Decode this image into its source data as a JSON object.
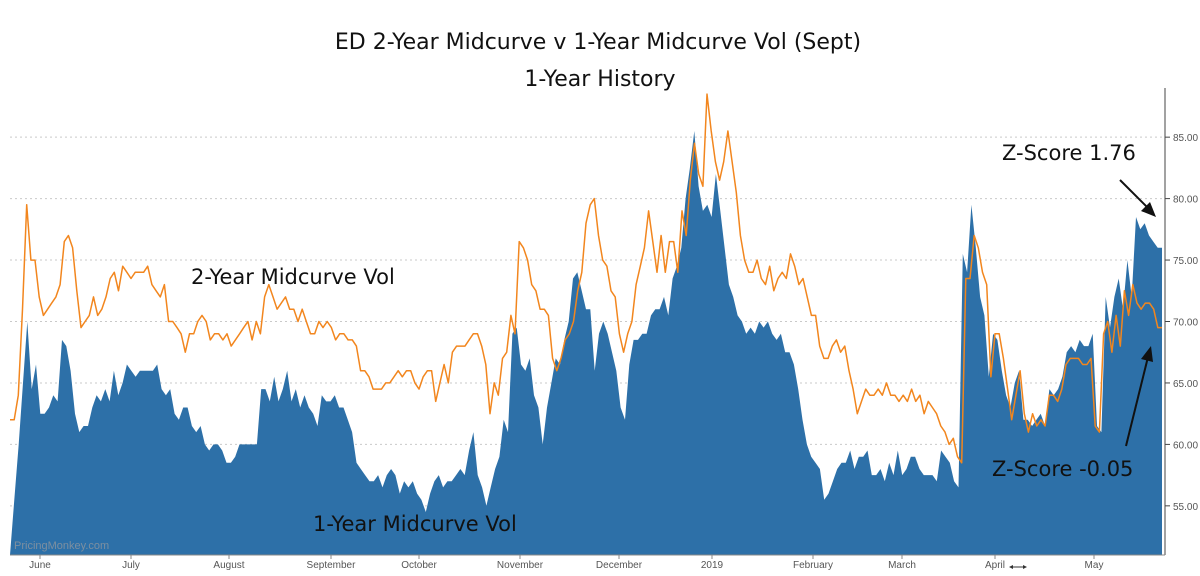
{
  "chart_data": {
    "type": "area",
    "title": "ED 2-Year Midcurve v 1-Year Midcurve Vol (Sept)",
    "subtitle": "1-Year History",
    "ylim": [
      51,
      89
    ],
    "y_ticks": [
      "55.00",
      "60.00",
      "65.00",
      "70.00",
      "75.00",
      "80.00",
      "85.00"
    ],
    "x_ticks": [
      "June",
      "July",
      "August",
      "September",
      "October",
      "November",
      "December",
      "2019",
      "February",
      "March",
      "April",
      "May"
    ],
    "grid": true,
    "series": [
      {
        "name": "2-Year Midcurve Vol",
        "kind": "line",
        "color": "#f2861e",
        "values": [
          62,
          62,
          64,
          71,
          79.5,
          75,
          75,
          72,
          70.5,
          71,
          71.5,
          72,
          73,
          76.5,
          77,
          76,
          72.5,
          69.5,
          70,
          70.5,
          72,
          70.5,
          71,
          72,
          73.5,
          74,
          72.5,
          74.5,
          74,
          73.5,
          74,
          74,
          74,
          74.5,
          73,
          72.5,
          72,
          73,
          70,
          70,
          69.5,
          69,
          67.5,
          69,
          69,
          70,
          70.5,
          70,
          68.5,
          69,
          69,
          68.5,
          69,
          68,
          68.5,
          69,
          69.5,
          70,
          68.5,
          70,
          69,
          72,
          73,
          72,
          71,
          71.5,
          72,
          71,
          71,
          70,
          71,
          70,
          69,
          69,
          70,
          69.5,
          70,
          69.5,
          68.5,
          69,
          69,
          68.5,
          68.5,
          68,
          66,
          66,
          65.5,
          64.5,
          64.5,
          64.5,
          65,
          65,
          65.5,
          66,
          65.5,
          66,
          66,
          65,
          64.5,
          65.5,
          66,
          66,
          63.5,
          65,
          66.5,
          65,
          67.5,
          68,
          68,
          68,
          68.5,
          69,
          69,
          68,
          66.5,
          62.5,
          65,
          64,
          67,
          67.5,
          70.5,
          69,
          76.5,
          76,
          75,
          73,
          72.5,
          71,
          71,
          70.5,
          67,
          66,
          67,
          68.5,
          69,
          70,
          72.5,
          74,
          78,
          79.5,
          80,
          77,
          75,
          74.5,
          72.5,
          72,
          69,
          67.5,
          69,
          70,
          73,
          74.5,
          76,
          79,
          76.5,
          74,
          77,
          74,
          76.5,
          76.5,
          74,
          79,
          77,
          81.5,
          84.5,
          82,
          81,
          88.5,
          85.5,
          83,
          81.5,
          83,
          85.5,
          83,
          80.5,
          77,
          75,
          74,
          74,
          75,
          73.5,
          73,
          74.5,
          72.5,
          73.5,
          74,
          73.5,
          75.5,
          74.5,
          73,
          73.5,
          72,
          70.5,
          70.5,
          68,
          67,
          67,
          68,
          68.5,
          67.5,
          68,
          66,
          64.5,
          62.5,
          63.5,
          64.5,
          64,
          64,
          64.5,
          64,
          65,
          64,
          64,
          63.5,
          64,
          63.5,
          64.5,
          63.5,
          64,
          62.5,
          63.5,
          63,
          62.5,
          61.5,
          61,
          60,
          60.5,
          59,
          58.5,
          73.5,
          73.5,
          77,
          76,
          74,
          73,
          65.5,
          69,
          69,
          67,
          64.5,
          62,
          64,
          66,
          62.5,
          61,
          62.5,
          61.5,
          62,
          61.5,
          64,
          64,
          63.5,
          64.5,
          66.5,
          67,
          67,
          67,
          66.5,
          66.5,
          67,
          61.5,
          61,
          69,
          70,
          67.5,
          70.5,
          68,
          72.5,
          70.5,
          73,
          71.5,
          71,
          71.5,
          71.5,
          71,
          69.5,
          69.5
        ]
      },
      {
        "name": "1-Year Midcurve Vol",
        "kind": "area",
        "color": "#2d70a8",
        "values": [
          51,
          55.5,
          60,
          65,
          70,
          64.5,
          66.5,
          62.5,
          62.5,
          63,
          64,
          63.5,
          68.5,
          68,
          66,
          62.5,
          61,
          61.5,
          61.5,
          63,
          64,
          63.5,
          64.5,
          63.5,
          66,
          64,
          65,
          66.5,
          66,
          65.5,
          66,
          66,
          66,
          66,
          66.5,
          64.5,
          64,
          64.5,
          62.5,
          62,
          63,
          63,
          61.5,
          61,
          61.5,
          60,
          59.5,
          60,
          60,
          59.5,
          58.5,
          58.5,
          59,
          60,
          60,
          60,
          60,
          60,
          64.5,
          64.5,
          63.5,
          65.5,
          63.5,
          64.5,
          66,
          63.5,
          64.5,
          63,
          64,
          63,
          62.5,
          61.5,
          64,
          63.5,
          63.5,
          64,
          63,
          63,
          62,
          61,
          58.5,
          58,
          57.5,
          57,
          57,
          57.5,
          56.5,
          57.5,
          58,
          57.5,
          56,
          57,
          56.5,
          57,
          56,
          55.5,
          54.5,
          56,
          57,
          57.5,
          56.5,
          57,
          57,
          57.5,
          58,
          57.5,
          59.5,
          61,
          57.5,
          56.5,
          55,
          56.5,
          58,
          59,
          62,
          61,
          69,
          69.5,
          66.5,
          66,
          67,
          64,
          63,
          60,
          63,
          65,
          67,
          66.5,
          68.5,
          70,
          73.5,
          74,
          72.5,
          71,
          71,
          66,
          69,
          70,
          69,
          67.5,
          66,
          63,
          62,
          66.5,
          68.5,
          68.5,
          69,
          69,
          70.5,
          71,
          71,
          72,
          70.5,
          73.5,
          74.5,
          76,
          80,
          82.5,
          85.5,
          81,
          79,
          79.5,
          78.5,
          82,
          79,
          76,
          73,
          72,
          70.5,
          70,
          69,
          69.5,
          69,
          70,
          69.5,
          70,
          69,
          68.5,
          69,
          67.5,
          67.5,
          66.5,
          64.5,
          62,
          60,
          59,
          58.5,
          58,
          55.5,
          56,
          57,
          58,
          58.5,
          58.5,
          59.5,
          58,
          59,
          59,
          59.5,
          57.5,
          57.5,
          58,
          57,
          58.5,
          57.5,
          59.5,
          57.5,
          58,
          59,
          59,
          58,
          57.5,
          57.5,
          57.5,
          57,
          59.5,
          59,
          58.5,
          57,
          56.5,
          75.5,
          74,
          79.5,
          76,
          72,
          70.5,
          65.5,
          69,
          68.5,
          66,
          64,
          63,
          65,
          66,
          62,
          62,
          61.5,
          62,
          62.5,
          61.5,
          64.5,
          64,
          64.5,
          65.5,
          67.5,
          68,
          67.5,
          68.5,
          68,
          68,
          69,
          61.5,
          61,
          72,
          69.5,
          72,
          73.5,
          71,
          75,
          72,
          78.5,
          77.5,
          78,
          77,
          76.5,
          76,
          76
        ]
      }
    ],
    "annotations": [
      "2-Year Midcurve Vol",
      "1-Year Midcurve Vol",
      "Z-Score 1.76",
      "Z-Score -0.05"
    ],
    "watermark": "PricingMonkey.com"
  }
}
